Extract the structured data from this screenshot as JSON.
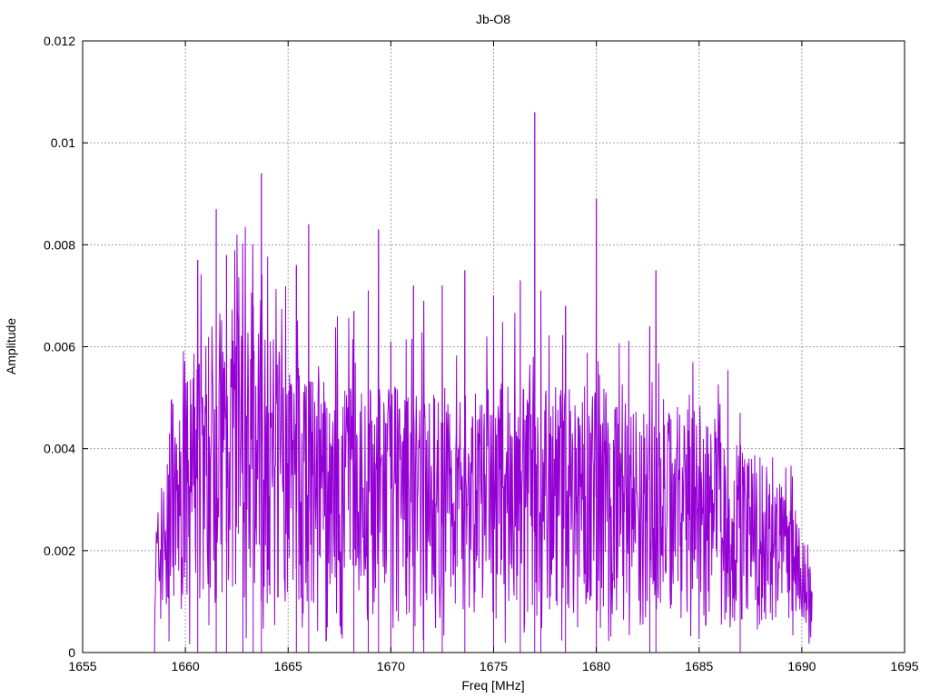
{
  "chart_data": {
    "type": "line",
    "title": "Jb-O8",
    "xlabel": "Freq [MHz]",
    "ylabel": "Amplitude",
    "xlim": [
      1655,
      1695
    ],
    "ylim": [
      0,
      0.012
    ],
    "xticks": [
      1655,
      1660,
      1665,
      1670,
      1675,
      1680,
      1685,
      1690,
      1695
    ],
    "yticks": [
      0,
      0.002,
      0.004,
      0.006,
      0.008,
      0.01,
      0.012
    ],
    "xtick_labels": [
      "1655",
      "1660",
      "1665",
      "1670",
      "1675",
      "1680",
      "1685",
      "1690",
      "1695"
    ],
    "ytick_labels": [
      "0",
      "0.002",
      "0.004",
      "0.006",
      "0.008",
      "0.01",
      "0.012"
    ],
    "grid": true,
    "series": [
      {
        "color": "#9400d3",
        "x_range": [
          1658.5,
          1690.5
        ],
        "envelope": [
          {
            "x": 1658.5,
            "y": 0.0015
          },
          {
            "x": 1659.5,
            "y": 0.0025
          },
          {
            "x": 1660.5,
            "y": 0.0035
          },
          {
            "x": 1662.0,
            "y": 0.004
          },
          {
            "x": 1664.0,
            "y": 0.0036
          },
          {
            "x": 1666.0,
            "y": 0.0031
          },
          {
            "x": 1668.0,
            "y": 0.003
          },
          {
            "x": 1670.0,
            "y": 0.003
          },
          {
            "x": 1672.0,
            "y": 0.0029
          },
          {
            "x": 1674.0,
            "y": 0.0029
          },
          {
            "x": 1676.0,
            "y": 0.0031
          },
          {
            "x": 1678.0,
            "y": 0.003
          },
          {
            "x": 1680.0,
            "y": 0.003
          },
          {
            "x": 1682.0,
            "y": 0.0029
          },
          {
            "x": 1684.0,
            "y": 0.0028
          },
          {
            "x": 1686.0,
            "y": 0.0026
          },
          {
            "x": 1688.0,
            "y": 0.0022
          },
          {
            "x": 1689.5,
            "y": 0.0017
          },
          {
            "x": 1690.5,
            "y": 0.001
          }
        ],
        "peaks": [
          {
            "x": 1660.6,
            "y": 0.0077
          },
          {
            "x": 1661.5,
            "y": 0.0087
          },
          {
            "x": 1662.0,
            "y": 0.0078
          },
          {
            "x": 1662.8,
            "y": 0.0066
          },
          {
            "x": 1663.3,
            "y": 0.0068
          },
          {
            "x": 1663.7,
            "y": 0.0094
          },
          {
            "x": 1665.4,
            "y": 0.0076
          },
          {
            "x": 1666.0,
            "y": 0.0084
          },
          {
            "x": 1668.2,
            "y": 0.0067
          },
          {
            "x": 1668.9,
            "y": 0.0071
          },
          {
            "x": 1669.4,
            "y": 0.0083
          },
          {
            "x": 1670.0,
            "y": 0.0061
          },
          {
            "x": 1671.1,
            "y": 0.0072
          },
          {
            "x": 1671.6,
            "y": 0.0069
          },
          {
            "x": 1672.5,
            "y": 0.0072
          },
          {
            "x": 1673.6,
            "y": 0.0075
          },
          {
            "x": 1675.0,
            "y": 0.007
          },
          {
            "x": 1676.3,
            "y": 0.0073
          },
          {
            "x": 1677.0,
            "y": 0.0106
          },
          {
            "x": 1677.3,
            "y": 0.0071
          },
          {
            "x": 1678.5,
            "y": 0.0068
          },
          {
            "x": 1680.0,
            "y": 0.0089
          },
          {
            "x": 1682.6,
            "y": 0.0064
          },
          {
            "x": 1682.9,
            "y": 0.0075
          },
          {
            "x": 1687.0,
            "y": 0.0047
          }
        ]
      }
    ]
  }
}
